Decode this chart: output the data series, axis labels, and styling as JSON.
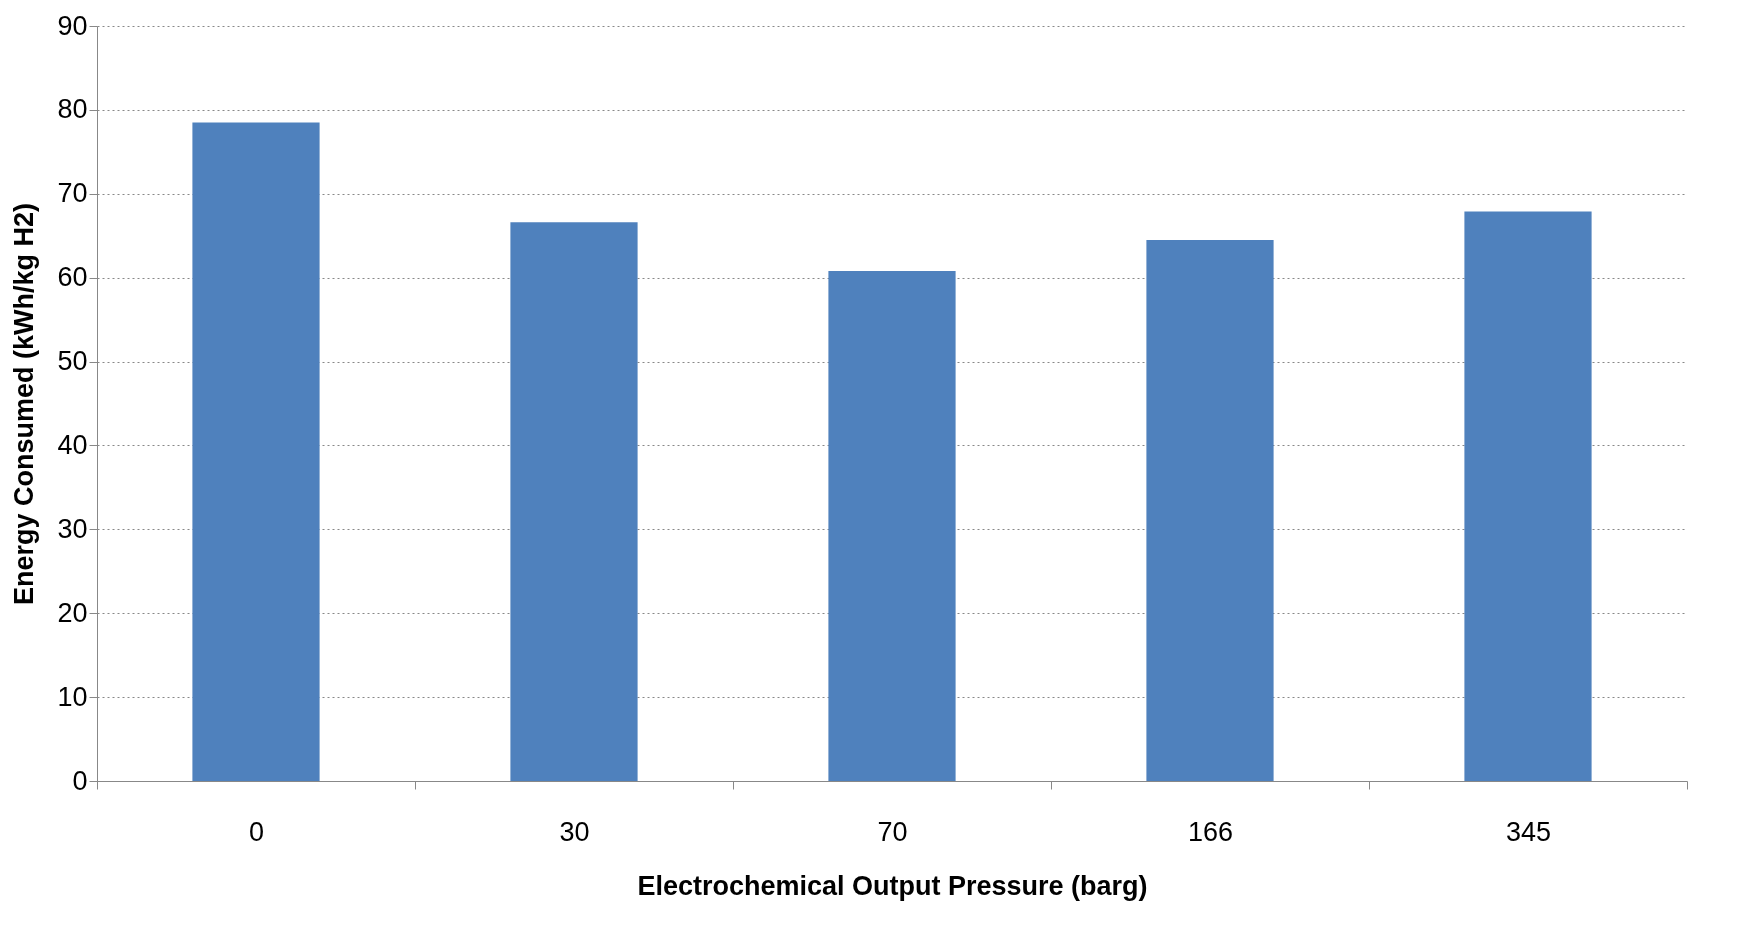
{
  "chart_data": {
    "type": "bar",
    "xlabel": "Electrochemical Output Pressure (barg)",
    "ylabel": "Energy Consumed (kWh/kg H2)",
    "categories": [
      "0",
      "30",
      "70",
      "166",
      "345"
    ],
    "values": [
      78.5,
      66.6,
      60.8,
      64.5,
      67.9
    ],
    "color": "#4f81bd",
    "ylim": [
      0,
      90
    ],
    "yticks": [
      0,
      10,
      20,
      30,
      40,
      50,
      60,
      70,
      80,
      90
    ],
    "grid": "y"
  }
}
